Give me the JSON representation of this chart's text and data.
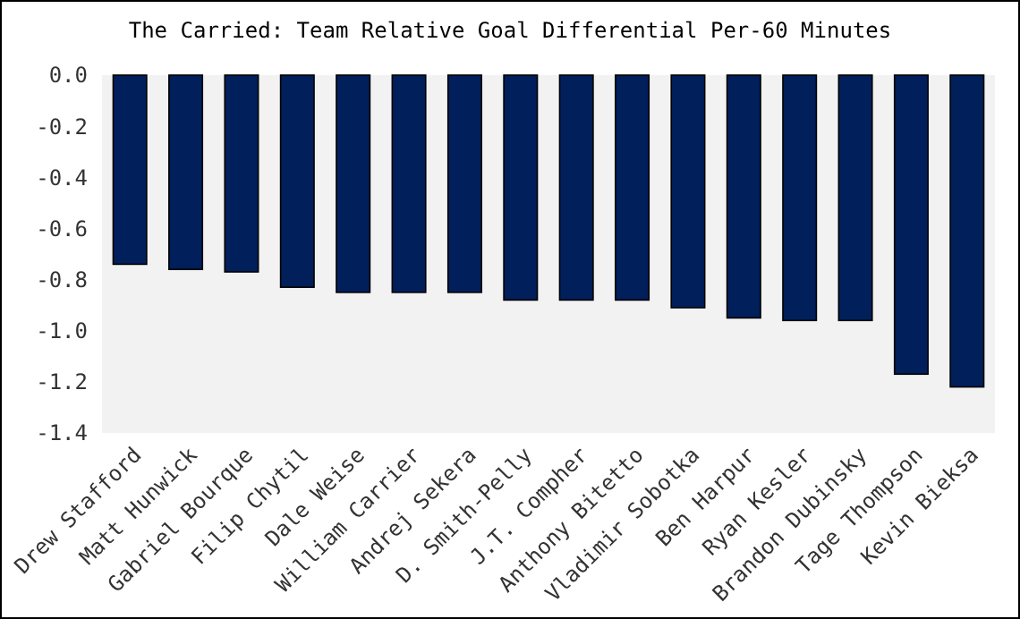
{
  "chart_data": {
    "type": "bar",
    "title": "The Carried: Team Relative Goal Differential Per-60 Minutes",
    "categories": [
      "Drew Stafford",
      "Matt Hunwick",
      "Gabriel Bourque",
      "Filip Chytil",
      "Dale Weise",
      "William Carrier",
      "Andrej Sekera",
      "D. Smith-Pelly",
      "J.T. Compher",
      "Anthony Bitetto",
      "Vladimir Sobotka",
      "Ben Harpur",
      "Ryan Kesler",
      "Brandon Dubinsky",
      "Tage Thompson",
      "Kevin Bieksa"
    ],
    "values": [
      -0.74,
      -0.76,
      -0.77,
      -0.83,
      -0.85,
      -0.85,
      -0.85,
      -0.88,
      -0.88,
      -0.88,
      -0.91,
      -0.95,
      -0.96,
      -0.96,
      -1.17,
      -1.22
    ],
    "color": "#001f5b",
    "ylim": [
      -1.4,
      0
    ],
    "yticks": [
      {
        "value": 0,
        "label": "0.0"
      },
      {
        "value": -0.2,
        "label": "-0.2"
      },
      {
        "value": -0.4,
        "label": "-0.4"
      },
      {
        "value": -0.6,
        "label": "-0.6"
      },
      {
        "value": -0.8,
        "label": "-0.8"
      },
      {
        "value": -1,
        "label": "-1.0"
      },
      {
        "value": -1.2,
        "label": "-1.2"
      },
      {
        "value": -1.4,
        "label": "-1.4"
      }
    ]
  }
}
